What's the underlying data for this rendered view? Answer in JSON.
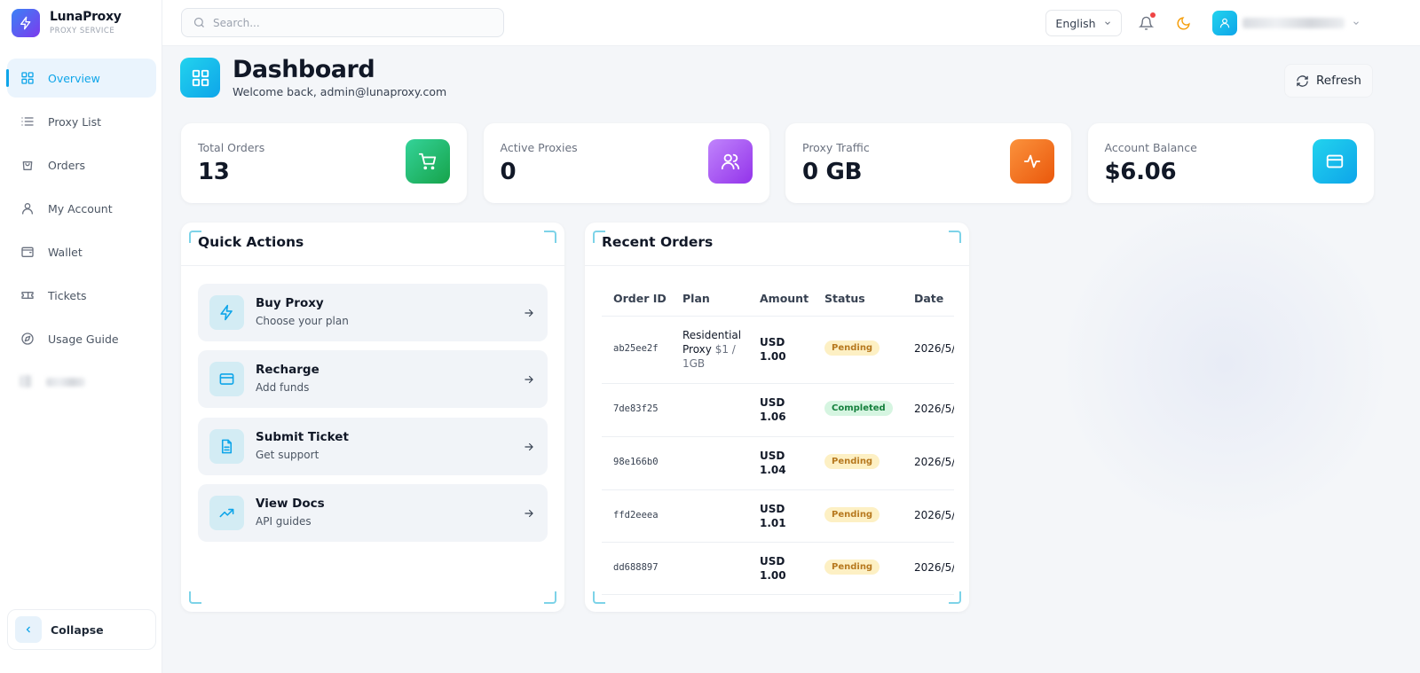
{
  "sidebar": {
    "brand": "LunaProxy",
    "tagline": "PROXY SERVICE",
    "nav": [
      "Overview",
      "Proxy List",
      "Orders",
      "My Account",
      "Wallet",
      "Tickets",
      "Usage Guide"
    ],
    "collapse": "Collapse"
  },
  "header": {
    "search_placeholder": "Search...",
    "language": "English"
  },
  "page": {
    "title": "Dashboard",
    "subtitle": "Welcome back, admin@lunaproxy.com",
    "refresh": "Refresh"
  },
  "stats": [
    {
      "label": "Total Orders",
      "value": "13"
    },
    {
      "label": "Active Proxies",
      "value": "0"
    },
    {
      "label": "Proxy Traffic",
      "value": "0 GB"
    },
    {
      "label": "Account Balance",
      "value": "$6.06"
    }
  ],
  "quick_actions": {
    "title": "Quick Actions",
    "items": [
      {
        "title": "Buy Proxy",
        "description": "Choose your plan"
      },
      {
        "title": "Recharge",
        "description": "Add funds"
      },
      {
        "title": "Submit Ticket",
        "description": "Get support"
      },
      {
        "title": "View Docs",
        "description": "API guides"
      }
    ]
  },
  "recent_orders": {
    "title": "Recent Orders",
    "columns": [
      "Order ID",
      "Plan",
      "Amount",
      "Status",
      "Date"
    ],
    "rows": [
      {
        "order_id": "ab25ee2f",
        "plan": "Residential Proxy",
        "plan_price": "$1 / 1GB",
        "amount": "USD 1.00",
        "status": "Pending",
        "date": "2026/5/"
      },
      {
        "order_id": "7de83f25",
        "amount": "USD 1.06",
        "status": "Completed",
        "date": "2026/5/"
      },
      {
        "order_id": "98e166b0",
        "amount": "USD 1.04",
        "status": "Pending",
        "date": "2026/5/"
      },
      {
        "order_id": "ffd2eeea",
        "amount": "USD 1.01",
        "status": "Pending",
        "date": "2026/5/"
      },
      {
        "order_id": "dd688897",
        "amount": "USD 1.00",
        "status": "Pending",
        "date": "2026/5/"
      }
    ]
  }
}
